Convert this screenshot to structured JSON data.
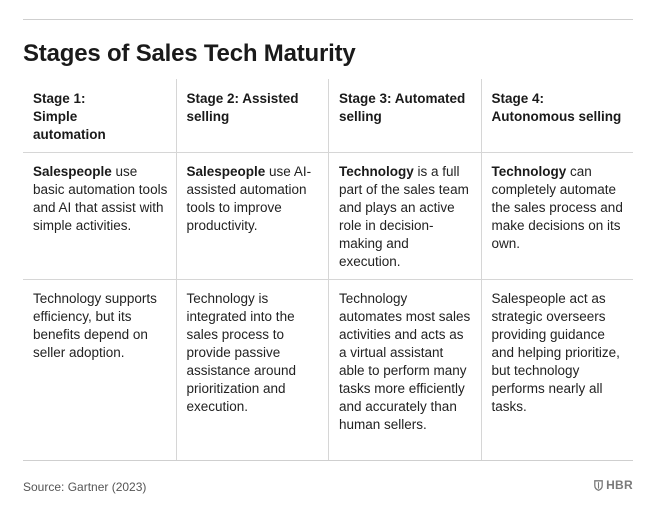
{
  "title": "Stages of Sales Tech Maturity",
  "stages": [
    {
      "heading": "Stage 1: Simple automation",
      "desc_strong": "Salespeople",
      "desc_rest": " use basic automation tools and AI that assist with simple activities.",
      "outcome": "Technology supports efficiency, but its benefits depend on seller adoption."
    },
    {
      "heading": "Stage 2: Assisted selling",
      "desc_strong": "Salespeople",
      "desc_rest": " use AI-assisted automation tools to improve productivity.",
      "outcome": "Technology is integrated into the sales process to provide passive assistance around prioritization and execution."
    },
    {
      "heading": "Stage 3: Automated selling",
      "desc_strong": "Technology",
      "desc_rest": " is a full part of the sales team and plays an active role in decision-making and execution.",
      "outcome": "Technology automates most sales activities and acts as a virtual assistant able to perform many tasks more efficiently and accurately than human sellers."
    },
    {
      "heading": "Stage 4: Autonomous selling",
      "desc_strong": "Technology",
      "desc_rest": " can completely automate the sales process and make decisions on its own.",
      "outcome": "Salespeople act as strategic overseers providing guidance and helping prioritize, but technology performs nearly all tasks."
    }
  ],
  "source": "Source: Gartner (2023)",
  "brand": {
    "label": "HBR",
    "icon": "hbr-shield-icon"
  }
}
